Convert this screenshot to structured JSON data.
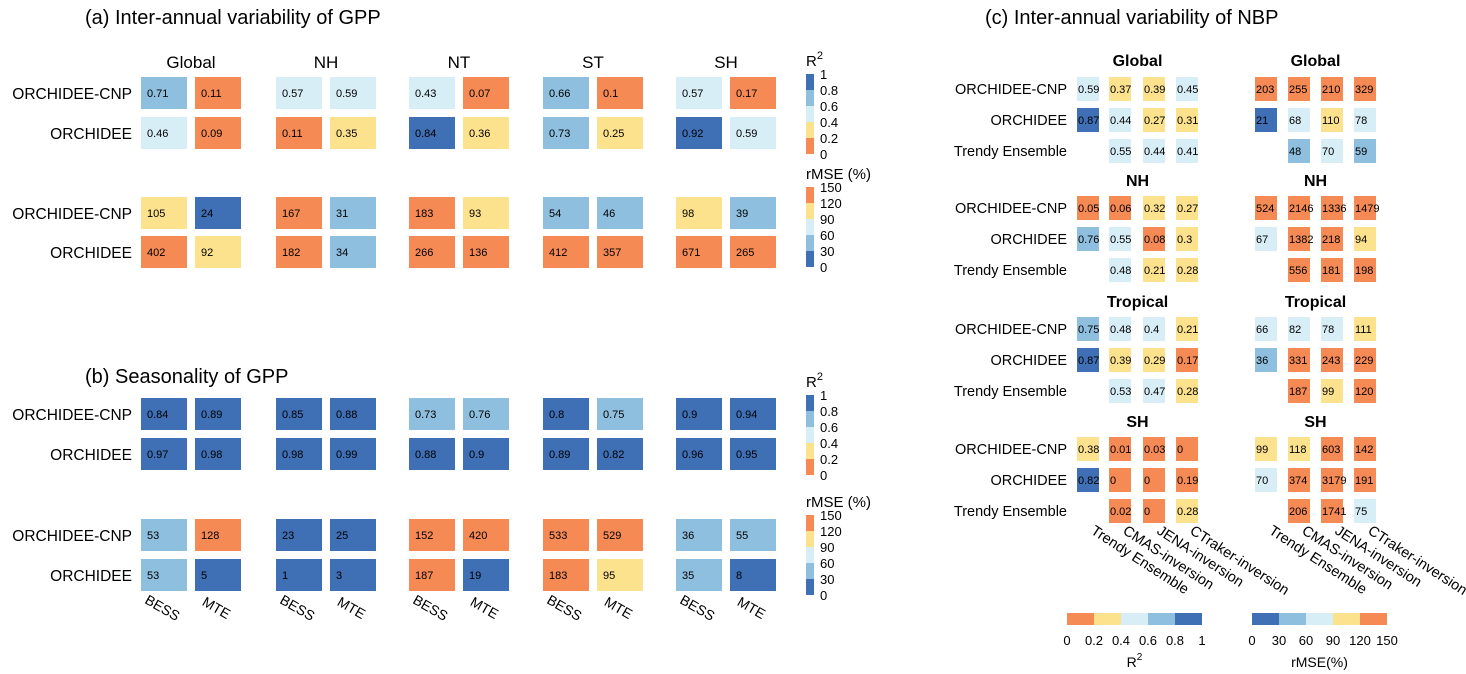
{
  "colors": {
    "c1": "#3f6fb4",
    "c2": "#8fbfdf",
    "c3": "#d8eef6",
    "c4": "#fde28e",
    "c5": "#f68a55"
  },
  "chart_data": [
    {
      "type": "heatmap",
      "id": "a_r2",
      "title": "(a) Inter-annual variability of GPP",
      "metric": "R2",
      "regions": [
        "Global",
        "NH",
        "NT",
        "ST",
        "SH"
      ],
      "columns": [
        "BESS",
        "MTE"
      ],
      "rows": [
        "ORCHIDEE-CNP",
        "ORCHIDEE"
      ],
      "values": [
        [
          [
            0.71,
            0.11
          ],
          [
            0.57,
            0.59
          ],
          [
            0.43,
            0.07
          ],
          [
            0.66,
            0.1
          ],
          [
            0.57,
            0.17
          ]
        ],
        [
          [
            0.46,
            0.09
          ],
          [
            0.11,
            0.35
          ],
          [
            0.84,
            0.36
          ],
          [
            0.73,
            0.25
          ],
          [
            0.92,
            0.59
          ]
        ]
      ]
    },
    {
      "type": "heatmap",
      "id": "a_rmse",
      "metric": "rMSE (%)",
      "regions": [
        "Global",
        "NH",
        "NT",
        "ST",
        "SH"
      ],
      "columns": [
        "BESS",
        "MTE"
      ],
      "rows": [
        "ORCHIDEE-CNP",
        "ORCHIDEE"
      ],
      "values": [
        [
          [
            105,
            24
          ],
          [
            167,
            31
          ],
          [
            183,
            93
          ],
          [
            54,
            46
          ],
          [
            98,
            39
          ]
        ],
        [
          [
            402,
            92
          ],
          [
            182,
            34
          ],
          [
            266,
            136
          ],
          [
            412,
            357
          ],
          [
            671,
            265
          ]
        ]
      ]
    },
    {
      "type": "heatmap",
      "id": "b_r2",
      "title": "(b) Seasonality of GPP",
      "metric": "R2",
      "regions": [
        "Global",
        "NH",
        "NT",
        "ST",
        "SH"
      ],
      "columns": [
        "BESS",
        "MTE"
      ],
      "rows": [
        "ORCHIDEE-CNP",
        "ORCHIDEE"
      ],
      "values": [
        [
          [
            0.84,
            0.89
          ],
          [
            0.85,
            0.88
          ],
          [
            0.73,
            0.76
          ],
          [
            0.8,
            0.75
          ],
          [
            0.9,
            0.94
          ]
        ],
        [
          [
            0.97,
            0.98
          ],
          [
            0.98,
            0.99
          ],
          [
            0.88,
            0.9
          ],
          [
            0.89,
            0.82
          ],
          [
            0.96,
            0.95
          ]
        ]
      ]
    },
    {
      "type": "heatmap",
      "id": "b_rmse",
      "metric": "rMSE (%)",
      "regions": [
        "Global",
        "NH",
        "NT",
        "ST",
        "SH"
      ],
      "columns": [
        "BESS",
        "MTE"
      ],
      "rows": [
        "ORCHIDEE-CNP",
        "ORCHIDEE"
      ],
      "values": [
        [
          [
            53,
            128
          ],
          [
            23,
            25
          ],
          [
            152,
            420
          ],
          [
            533,
            529
          ],
          [
            36,
            55
          ]
        ],
        [
          [
            53,
            5
          ],
          [
            1,
            3
          ],
          [
            187,
            19
          ],
          [
            183,
            95
          ],
          [
            35,
            8
          ]
        ]
      ]
    },
    {
      "type": "heatmap",
      "id": "c_r2",
      "title": "(c) Inter-annual variability of NBP",
      "metric": "R2",
      "regions": [
        "Global",
        "NH",
        "Tropical",
        "SH"
      ],
      "columns": [
        "Trendy Ensemble",
        "CMAS-inversion",
        "JENA-inversion",
        "CTraker-inversion"
      ],
      "rows": [
        "ORCHIDEE-CNP",
        "ORCHIDEE",
        "Trendy Ensemble"
      ],
      "values": [
        [
          [
            0.59,
            0.37,
            0.39,
            0.45
          ],
          [
            0.87,
            0.44,
            0.27,
            0.31
          ],
          [
            null,
            0.55,
            0.44,
            0.41
          ]
        ],
        [
          [
            0.05,
            0.06,
            0.32,
            0.27
          ],
          [
            0.76,
            0.55,
            0.08,
            0.3
          ],
          [
            null,
            0.48,
            0.21,
            0.28
          ]
        ],
        [
          [
            0.75,
            0.48,
            0.4,
            0.21
          ],
          [
            0.87,
            0.39,
            0.29,
            0.17
          ],
          [
            null,
            0.53,
            0.47,
            0.28
          ]
        ],
        [
          [
            0.38,
            0.01,
            0.03,
            0
          ],
          [
            0.82,
            0,
            0,
            0.19
          ],
          [
            null,
            0.02,
            0,
            0.28
          ]
        ]
      ]
    },
    {
      "type": "heatmap",
      "id": "c_rmse",
      "metric": "rMSE(%)",
      "regions": [
        "Global",
        "NH",
        "Tropical",
        "SH"
      ],
      "columns": [
        "Trendy Ensemble",
        "CMAS-inversion",
        "JENA-inversion",
        "CTraker-inversion"
      ],
      "rows": [
        "ORCHIDEE-CNP",
        "ORCHIDEE",
        "Trendy Ensemble"
      ],
      "values": [
        [
          [
            203,
            255,
            210,
            329
          ],
          [
            21,
            68,
            110,
            78
          ],
          [
            null,
            48,
            70,
            59
          ]
        ],
        [
          [
            524,
            2146,
            1336,
            1479
          ],
          [
            67,
            1382,
            218,
            94
          ],
          [
            null,
            556,
            181,
            198
          ]
        ],
        [
          [
            66,
            82,
            78,
            111
          ],
          [
            36,
            331,
            243,
            229
          ],
          [
            null,
            187,
            99,
            120
          ]
        ],
        [
          [
            99,
            118,
            603,
            142
          ],
          [
            70,
            374,
            3179,
            191
          ],
          [
            null,
            206,
            1741,
            75
          ]
        ]
      ]
    }
  ],
  "legends": {
    "r2_label": "R",
    "r2_sup": "2",
    "r2_ticks": [
      "1",
      "0.8",
      "0.6",
      "0.4",
      "0.2",
      "0"
    ],
    "rmse_label": "rMSE (%)",
    "rmse_ticks": [
      "150",
      "120",
      "90",
      "60",
      "30",
      "0"
    ],
    "bottom_r2_ticks": [
      "0",
      "0.2",
      "0.4",
      "0.6",
      "0.8",
      "1"
    ],
    "bottom_rmse_ticks": [
      "0",
      "30",
      "60",
      "90",
      "120",
      "150"
    ],
    "bottom_rmse_label": "rMSE(%)"
  }
}
